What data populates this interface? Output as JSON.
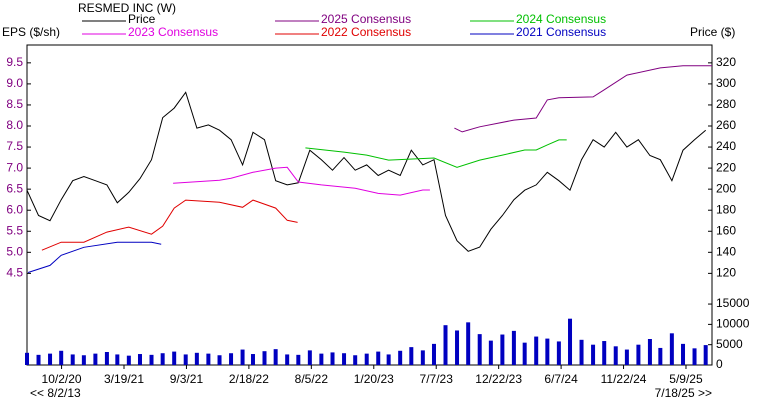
{
  "chart_data": [
    {
      "type": "line",
      "title": "RESMED INC (W)",
      "y_label": "EPS ($/sh)",
      "y2_label": "Price ($)",
      "x_range_labels": [
        "<< 8/2/13",
        "7/18/25 >>"
      ],
      "xlim": [
        "7/1/20",
        "7/18/25"
      ],
      "xticks": [
        "10/2/20",
        "3/19/21",
        "9/3/21",
        "2/18/22",
        "8/5/22",
        "1/20/23",
        "7/7/23",
        "12/22/23",
        "6/7/24",
        "11/22/24",
        "5/9/25"
      ],
      "ylim": [
        4.2,
        9.9
      ],
      "yticks": [
        4.5,
        {
          "value": 5,
          "label": "5.0"
        },
        5.5,
        {
          "value": 6,
          "label": "6.0"
        },
        6.5,
        {
          "value": 7,
          "label": "7.0"
        },
        7.5,
        {
          "value": 8,
          "label": "8.0"
        },
        8.5,
        {
          "value": 9,
          "label": "9.0"
        },
        9.5
      ],
      "y2lim": [
        108,
        336
      ],
      "y2ticks": [
        120,
        140,
        160,
        180,
        200,
        220,
        240,
        260,
        280,
        300,
        320
      ],
      "grid": false,
      "series": [
        {
          "name": "Price",
          "color": "#000000",
          "axis": "y2",
          "x": [
            "7/1/20",
            "8/1/20",
            "9/1/20",
            "10/1/20",
            "11/1/20",
            "12/1/20",
            "1/1/21",
            "2/1/21",
            "3/1/21",
            "4/1/21",
            "5/1/21",
            "6/1/21",
            "7/1/21",
            "8/1/21",
            "9/1/21",
            "10/1/21",
            "11/1/21",
            "12/1/21",
            "1/1/22",
            "2/1/22",
            "3/1/22",
            "4/1/22",
            "5/1/22",
            "6/1/22",
            "7/1/22",
            "8/1/22",
            "9/1/22",
            "10/1/22",
            "11/1/22",
            "12/1/22",
            "1/1/23",
            "2/1/23",
            "3/1/23",
            "4/1/23",
            "5/1/23",
            "6/1/23",
            "7/1/23",
            "8/1/23",
            "9/1/23",
            "10/1/23",
            "11/1/23",
            "12/1/23",
            "1/1/24",
            "2/1/24",
            "3/1/24",
            "4/1/24",
            "5/1/24",
            "6/1/24",
            "7/1/24",
            "8/1/24",
            "9/1/24",
            "10/1/24",
            "11/1/24",
            "12/1/24",
            "1/1/25",
            "2/1/25",
            "3/1/25",
            "4/1/25",
            "5/1/25",
            "6/1/25",
            "7/1/25"
          ],
          "values": [
            199,
            175,
            170,
            190,
            208,
            212,
            208,
            204,
            187,
            197,
            210,
            228,
            268,
            277,
            292,
            258,
            261,
            256,
            247,
            223,
            254,
            247,
            208,
            204,
            206,
            237,
            228,
            218,
            230,
            218,
            223,
            213,
            218,
            213,
            237,
            223,
            228,
            175,
            151,
            141,
            145,
            162,
            175,
            190,
            199,
            204,
            216,
            208,
            199,
            228,
            247,
            240,
            254,
            240,
            247,
            232,
            228,
            208,
            237,
            247,
            256
          ]
        },
        {
          "name": "2025 Consensus",
          "color": "#800080",
          "x": [
            "8/25/23",
            "9/15/23",
            "11/1/23",
            "2/1/24",
            "4/1/24",
            "5/1/24",
            "6/1/24",
            "9/1/24",
            "10/1/24",
            "12/1/24",
            "3/1/25",
            "5/1/25",
            "7/18/25"
          ],
          "values": [
            7.95,
            7.86,
            7.98,
            8.14,
            8.19,
            8.62,
            8.67,
            8.69,
            8.86,
            9.21,
            9.38,
            9.43,
            9.43
          ]
        },
        {
          "name": "2024 Consensus",
          "color": "#00c000",
          "x": [
            "7/20/22",
            "11/1/22",
            "1/1/23",
            "3/1/23",
            "7/1/23",
            "9/1/23",
            "11/1/23",
            "1/1/24",
            "3/1/24",
            "4/1/24",
            "5/1/24",
            "6/1/24",
            "6/22/24"
          ],
          "values": [
            7.48,
            7.38,
            7.31,
            7.19,
            7.24,
            7.02,
            7.19,
            7.31,
            7.43,
            7.43,
            7.55,
            7.67,
            7.67
          ]
        },
        {
          "name": "2023 Consensus",
          "color": "#e000e0",
          "x": [
            "7/29/21",
            "12/1/21",
            "1/1/22",
            "3/1/22",
            "5/1/22",
            "6/1/22",
            "7/1/22",
            "9/1/22",
            "12/1/22",
            "2/1/23",
            "4/1/23",
            "6/1/23",
            "6/20/23"
          ],
          "values": [
            6.64,
            6.71,
            6.76,
            6.9,
            7.0,
            7.02,
            6.67,
            6.6,
            6.52,
            6.4,
            6.36,
            6.48,
            6.48
          ]
        },
        {
          "name": "2022 Consensus",
          "color": "#e00000",
          "x": [
            "8/10/20",
            "10/1/20",
            "12/1/20",
            "2/1/21",
            "4/1/21",
            "6/1/21",
            "7/1/21",
            "8/1/21",
            "9/1/21",
            "12/1/21",
            "2/1/22",
            "3/1/22",
            "5/1/22",
            "6/1/22",
            "6/29/22"
          ],
          "values": [
            5.05,
            5.24,
            5.24,
            5.48,
            5.6,
            5.43,
            5.62,
            6.05,
            6.24,
            6.19,
            6.07,
            6.24,
            6.05,
            5.76,
            5.71
          ]
        },
        {
          "name": "2021 Consensus",
          "color": "#0000c0",
          "x": [
            "7/4/20",
            "9/1/20",
            "10/1/20",
            "12/1/20",
            "3/1/21",
            "6/1/21",
            "6/27/21"
          ],
          "values": [
            4.52,
            4.69,
            4.93,
            5.12,
            5.24,
            5.24,
            5.19
          ]
        }
      ]
    },
    {
      "type": "bar",
      "color": "#0000c0",
      "xlim": [
        "7/1/20",
        "7/18/25"
      ],
      "ylim": [
        0,
        16000
      ],
      "yticks": [
        0,
        5000,
        10000,
        15000
      ],
      "x": [
        "7/1/20",
        "8/1/20",
        "9/1/20",
        "10/1/20",
        "11/1/20",
        "12/1/20",
        "1/1/21",
        "2/1/21",
        "3/1/21",
        "4/1/21",
        "5/1/21",
        "6/1/21",
        "7/1/21",
        "8/1/21",
        "9/1/21",
        "10/1/21",
        "11/1/21",
        "12/1/21",
        "1/1/22",
        "2/1/22",
        "3/1/22",
        "4/1/22",
        "5/1/22",
        "6/1/22",
        "7/1/22",
        "8/1/22",
        "9/1/22",
        "10/1/22",
        "11/1/22",
        "12/1/22",
        "1/1/23",
        "2/1/23",
        "3/1/23",
        "4/1/23",
        "5/1/23",
        "6/1/23",
        "7/1/23",
        "8/1/23",
        "9/1/23",
        "10/1/23",
        "11/1/23",
        "12/1/23",
        "1/1/24",
        "2/1/24",
        "3/1/24",
        "4/1/24",
        "5/1/24",
        "6/1/24",
        "7/1/24",
        "8/1/24",
        "9/1/24",
        "10/1/24",
        "11/1/24",
        "12/1/24",
        "1/1/25",
        "2/1/25",
        "3/1/25",
        "4/1/25",
        "5/1/25",
        "6/1/25",
        "7/1/25"
      ],
      "values": [
        3000,
        2500,
        2800,
        3500,
        2600,
        2400,
        2800,
        3200,
        2600,
        2300,
        2700,
        2500,
        2900,
        3300,
        2600,
        3000,
        2800,
        2400,
        2900,
        3800,
        2700,
        3400,
        3900,
        2600,
        2500,
        3600,
        2800,
        3100,
        2900,
        2400,
        2800,
        3300,
        2600,
        3500,
        4400,
        3600,
        5200,
        9800,
        8500,
        10500,
        7600,
        6000,
        7500,
        8400,
        5500,
        7000,
        6500,
        5800,
        11400,
        6200,
        5000,
        5900,
        4600,
        3800,
        5000,
        6400,
        4200,
        7800,
        5200,
        4100,
        4900
      ]
    }
  ]
}
